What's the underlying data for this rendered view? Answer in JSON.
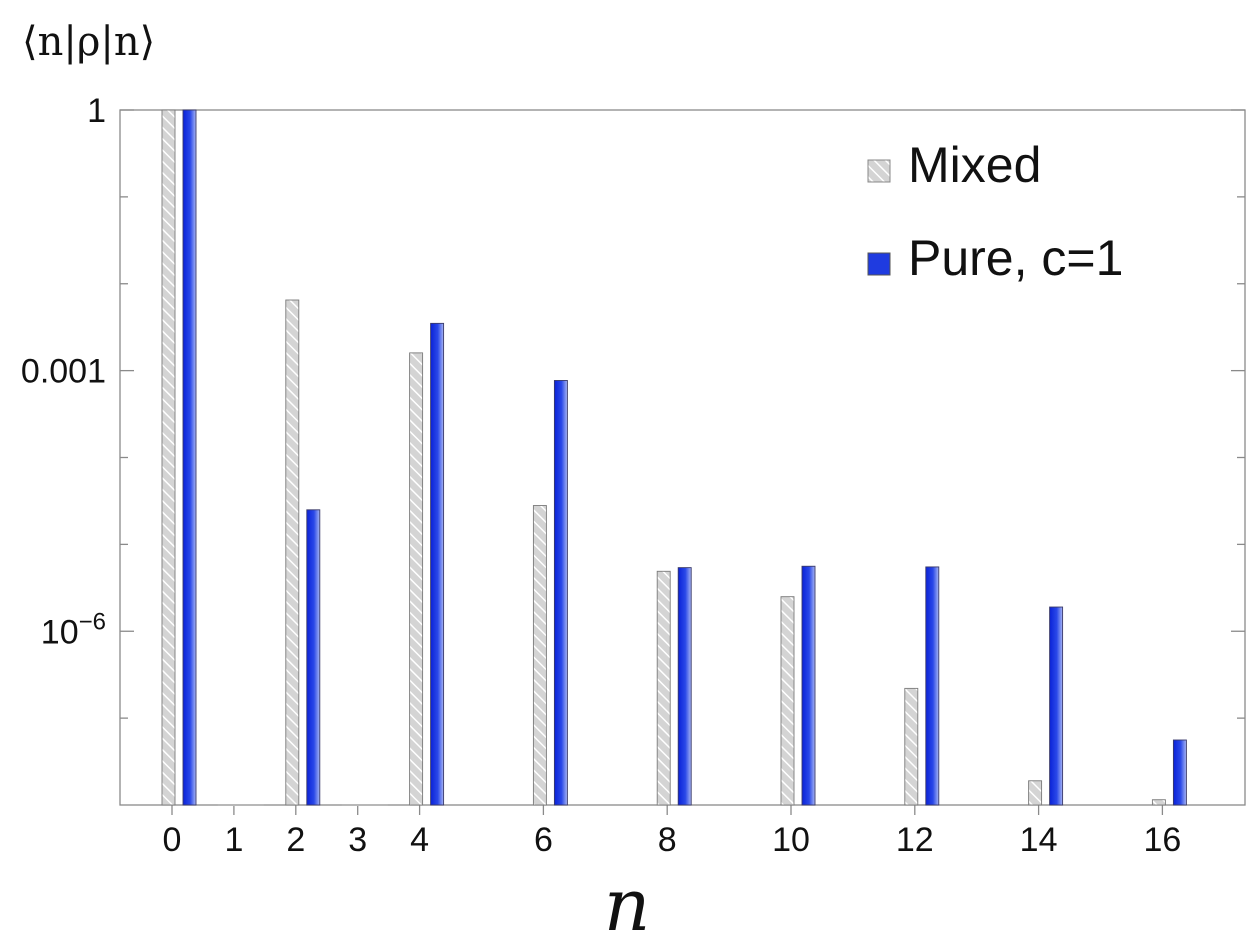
{
  "chart_data": {
    "type": "bar",
    "ylabel": "⟨n|ρ|n⟩",
    "xlabel": "n",
    "yscale": "log",
    "ylim": [
      1e-08,
      1
    ],
    "y_ticks": [
      {
        "value": 1,
        "base": "1",
        "exp": ""
      },
      {
        "value": 0.001,
        "base": "0.001",
        "exp": ""
      },
      {
        "value": 1e-06,
        "base": "10",
        "exp": "−6"
      }
    ],
    "x_ticks": [
      "0",
      "1",
      "2",
      "3",
      "4",
      "6",
      "8",
      "10",
      "12",
      "14",
      "16"
    ],
    "legend_position": "top-right",
    "categories": [
      "0",
      "1",
      "2",
      "3",
      "4",
      "6",
      "8",
      "10",
      "12",
      "14",
      "16"
    ],
    "series": [
      {
        "name": "Mixed",
        "color": "#d9d9d9",
        "hatched": true,
        "values": [
          1,
          null,
          0.0065,
          null,
          0.0016,
          2.8e-05,
          4.9e-06,
          2.5e-06,
          2.2e-07,
          1.9e-08,
          1.15e-08
        ]
      },
      {
        "name": "Pure, c=1",
        "color": "#1f3be0",
        "values": [
          1,
          null,
          2.5e-05,
          null,
          0.0035,
          0.00077,
          5.4e-06,
          5.6e-06,
          5.5e-06,
          1.9e-06,
          5.6e-08
        ]
      }
    ]
  }
}
